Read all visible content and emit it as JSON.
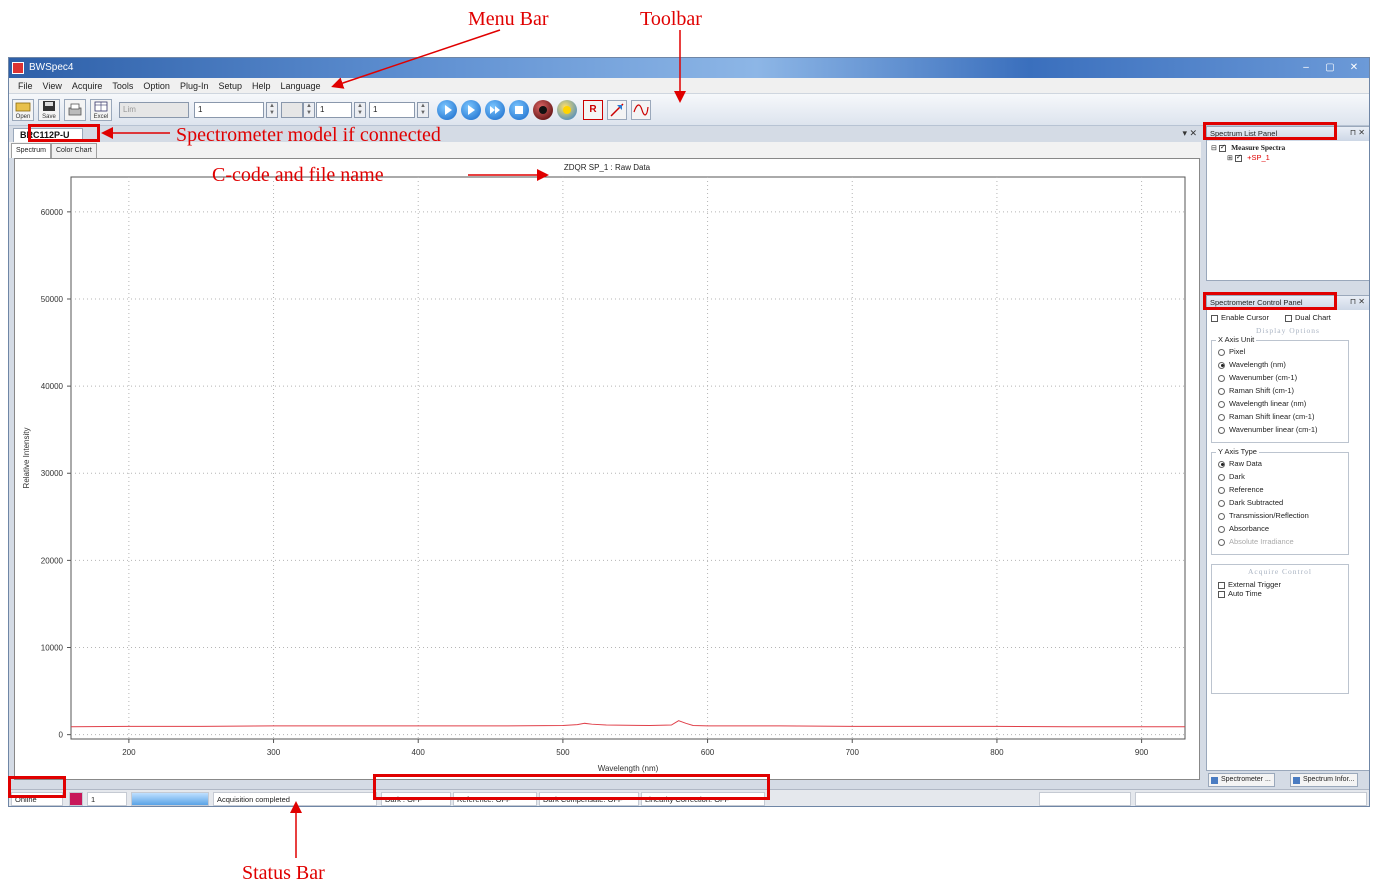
{
  "annotations": {
    "menu_bar": "Menu Bar",
    "toolbar": "Toolbar",
    "spectrometer_model": "Spectrometer model if connected",
    "ccode_filename": "C-code and file name",
    "status_bar": "Status Bar"
  },
  "window": {
    "title": "BWSpec4",
    "controls": [
      "–",
      "▢",
      "✕"
    ]
  },
  "menu": [
    "File",
    "View",
    "Acquire",
    "Tools",
    "Option",
    "Plug-In",
    "Setup",
    "Help",
    "Language"
  ],
  "toolbar": {
    "open_label": "Open",
    "save_label": "Save",
    "excel_label": "Excel",
    "disabled_field": "Lim",
    "field1": "1",
    "field2": "1",
    "field3": "1",
    "r_label": "R"
  },
  "doc_tab": {
    "label": "BRC112P-U",
    "close": "▾ ✕"
  },
  "sub_tabs": [
    "Spectrum",
    "Color Chart"
  ],
  "chart_title": "ZDQR SP_1 : Raw Data",
  "chart_data": {
    "type": "line",
    "title": "ZDQR SP_1 : Raw Data",
    "xlabel": "Wavelength (nm)",
    "ylabel": "Relative Intensity",
    "xlim": [
      160,
      930
    ],
    "ylim": [
      -500,
      64000
    ],
    "xticks": [
      200,
      300,
      400,
      500,
      600,
      700,
      800,
      900
    ],
    "yticks": [
      0,
      10000,
      20000,
      30000,
      40000,
      50000,
      60000
    ],
    "grid": true,
    "series": [
      {
        "color": "#e0404a",
        "x": [
          160,
          200,
          250,
          300,
          350,
          400,
          450,
          500,
          510,
          515,
          520,
          530,
          560,
          575,
          580,
          585,
          590,
          600,
          650,
          700,
          750,
          800,
          850,
          900,
          930
        ],
        "y": [
          900,
          950,
          950,
          1000,
          1000,
          1000,
          1000,
          1050,
          1150,
          1300,
          1200,
          1100,
          1050,
          1100,
          1600,
          1300,
          1050,
          1000,
          1000,
          950,
          950,
          950,
          900,
          900,
          900
        ]
      }
    ]
  },
  "spectrum_list_panel": {
    "title": "Spectrum List Panel",
    "pins": "⊓ ✕",
    "root": "Measure Spectra",
    "child": "+SP_1"
  },
  "control_panel": {
    "title": "Spectrometer Control Panel",
    "pins": "⊓ ✕",
    "enable_cursor": "Enable Cursor",
    "dual_chart": "Dual Chart",
    "display_options": "Display Options",
    "x_axis_unit": "X Axis Unit",
    "x_options": [
      "Pixel",
      "Wavelength (nm)",
      "Wavenumber (cm-1)",
      "Raman Shift (cm-1)",
      "Wavelength linear (nm)",
      "Raman Shift linear (cm-1)",
      "Wavenumber linear (cm-1)"
    ],
    "y_axis_type": "Y Axis Type",
    "y_options": [
      "Raw Data",
      "Dark",
      "Reference",
      "Dark Subtracted",
      "Transmission/Reflection",
      "Absorbance",
      "Absolute Irradiance"
    ],
    "acquire_control": "Acquire Control",
    "external_trigger": "External Trigger",
    "auto_time": "Auto Time"
  },
  "bottom_tabs": [
    "Spectrometer ...",
    "Spectrum Infor..."
  ],
  "status": {
    "online": "Online",
    "count": "1",
    "message": "Acquisition completed",
    "dark": "Dark : OFF",
    "reference": "Reference: OFF",
    "dark_comp": "Dark Compensate: OFF",
    "linearity": "Linearity Correction: OFF"
  },
  "colors": {
    "annotation": "#e00000",
    "plot_line": "#e0404a",
    "status_color_swatch": "#c8185a"
  }
}
